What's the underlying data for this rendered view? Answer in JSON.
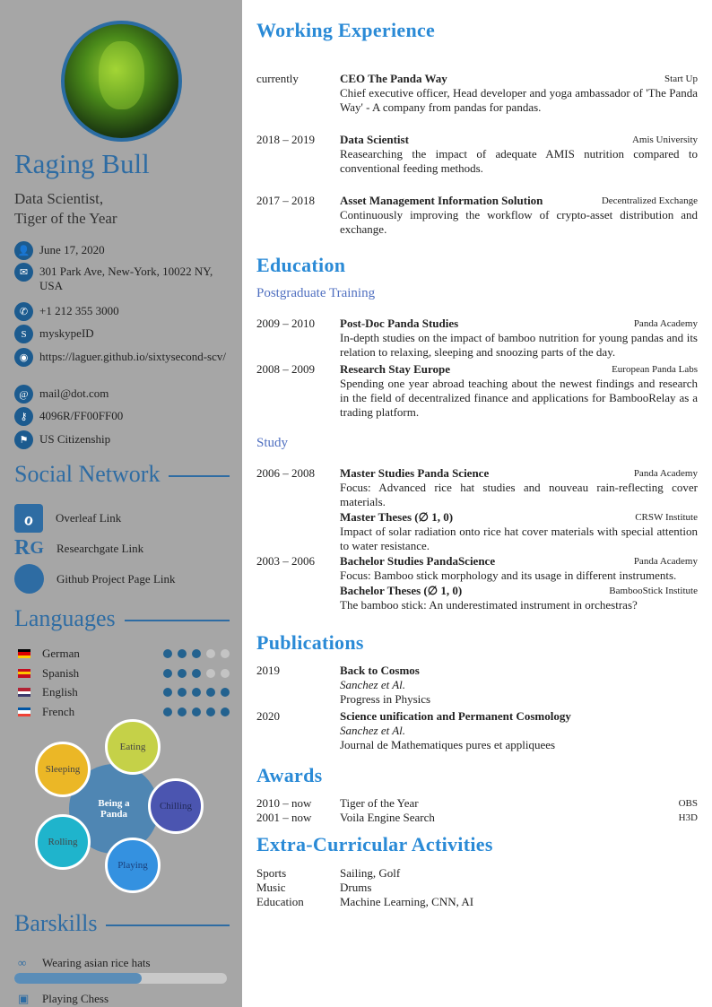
{
  "profile": {
    "name": "Raging Bull",
    "subtitle_1": "Data Scientist,",
    "subtitle_2": "Tiger of the Year"
  },
  "contacts": [
    {
      "icon": "user-icon",
      "glyph": "👤",
      "text": "June 17, 2020"
    },
    {
      "icon": "envelope-icon",
      "glyph": "✉",
      "text": "301 Park Ave, New-York, 10022 NY, USA"
    },
    {
      "icon": "phone-icon",
      "glyph": "✆",
      "text": "+1 212 355 3000"
    },
    {
      "icon": "skype-icon",
      "glyph": "S",
      "text": "myskypeID"
    },
    {
      "icon": "globe-icon",
      "glyph": "◉",
      "text": "https://laguer.github.io/sixtysecond-scv/"
    },
    {
      "icon": "at-icon",
      "glyph": "@",
      "text": "mail@dot.com"
    },
    {
      "icon": "key-icon",
      "glyph": "⚷",
      "text": "4096R/FF00FF00"
    },
    {
      "icon": "flag-icon",
      "glyph": "⚑",
      "text": "US Citizenship"
    }
  ],
  "social": {
    "heading": "Social Network",
    "items": [
      {
        "icon": "overleaf-icon",
        "glyph": "ℴ",
        "label": "Overleaf Link"
      },
      {
        "icon": "researchgate-icon",
        "glyph": "R<sup>G</sup>",
        "label": "Researchgate Link"
      },
      {
        "icon": "github-icon",
        "glyph": "●",
        "label": "Github Project Page Link"
      }
    ]
  },
  "languages": {
    "heading": "Languages",
    "items": [
      {
        "name": "German",
        "level": 3,
        "max": 5,
        "flag": [
          "#000",
          "#d00",
          "#fc0"
        ]
      },
      {
        "name": "Spanish",
        "level": 3,
        "max": 5,
        "flag": [
          "#c60b1e",
          "#ffc400",
          "#c60b1e"
        ]
      },
      {
        "name": "English",
        "level": 5,
        "max": 5,
        "flag": [
          "#b22234",
          "#fff",
          "#3c3b6e"
        ]
      },
      {
        "name": "French",
        "level": 5,
        "max": 5,
        "flag": [
          "#0055a4",
          "#fff",
          "#ef4135"
        ]
      }
    ]
  },
  "bubbles": {
    "center": "Being a Panda",
    "items": [
      {
        "label": "Eating",
        "color": "#c5d148"
      },
      {
        "label": "Chilling",
        "color": "#4b55b0"
      },
      {
        "label": "Playing",
        "color": "#3491e0"
      },
      {
        "label": "Rolling",
        "color": "#1fb4cc"
      },
      {
        "label": "Sleeping",
        "color": "#ebb726"
      }
    ]
  },
  "barskills": {
    "heading": "Barskills",
    "items": [
      {
        "icon": "link-icon",
        "glyph": "∞",
        "label": "Wearing asian rice hats",
        "level": 0.6
      },
      {
        "icon": "image-icon",
        "glyph": "▣",
        "label": "Playing Chess"
      }
    ]
  },
  "experience": {
    "heading": "Working Experience",
    "entries": [
      {
        "date": "currently",
        "title": "CEO The Panda Way",
        "org": "Start Up",
        "desc": "Chief executive officer, Head developer and yoga ambassador of 'The Panda Way' - A company from pandas for pandas."
      },
      {
        "date": "2018 – 2019",
        "title": "Data Scientist",
        "org": "Amis University",
        "desc": "Reasearching the impact of adequate AMIS nutrition compared to conventional feeding methods."
      },
      {
        "date": "2017 – 2018",
        "title": "Asset Management Information Solution",
        "org": "Decentralized Exchange",
        "desc": "Continuously improving the workflow of crypto-asset distribution and exchange."
      }
    ]
  },
  "education": {
    "heading": "Education",
    "postgrad": {
      "heading": "Postgraduate Training",
      "entries": [
        {
          "date": "2009 – 2010",
          "title": "Post-Doc Panda Studies",
          "org": "Panda Academy",
          "desc": "In-depth studies on the impact of bamboo nutrition for young pandas and its relation to relaxing, sleeping and snoozing parts of the day."
        },
        {
          "date": "2008 – 2009",
          "title": "Research Stay Europe",
          "org": "European Panda Labs",
          "desc": "Spending one year abroad teaching about the newest findings and research in the field of decentralized finance and applications for BambooRelay as a trading platform."
        }
      ]
    },
    "study": {
      "heading": "Study",
      "entries": [
        {
          "date": "2006 – 2008",
          "title": "Master Studies Panda Science",
          "org": "Panda Academy",
          "desc": "Focus: Advanced rice hat studies and nouveau rain-reflecting cover materials."
        },
        {
          "date": "",
          "title": "Master Theses (∅ 1, 0)",
          "org": "CRSW Institute",
          "desc": "Impact of solar radiation onto rice hat cover materials with special attention to water resistance."
        },
        {
          "date": "2003 – 2006",
          "title": "Bachelor Studies PandaScience",
          "org": "Panda Academy",
          "desc": "Focus: Bamboo stick morphology and its usage in different instruments."
        },
        {
          "date": "",
          "title": "Bachelor Theses (∅ 1, 0)",
          "org": "BambooStick Institute",
          "desc": "The bamboo stick: An underestimated instrument in orchestras?"
        }
      ]
    }
  },
  "publications": {
    "heading": "Publications",
    "entries": [
      {
        "date": "2019",
        "title": "Back to Cosmos",
        "authors": "Sanchez et Al.",
        "journal": "Progress in Physics"
      },
      {
        "date": "2020",
        "title": "Science unification and Permanent Cosmology",
        "authors": "Sanchez et Al.",
        "journal": "Journal de Mathematiques pures et appliquees"
      }
    ]
  },
  "awards": {
    "heading": "Awards",
    "entries": [
      {
        "date": "2010 – now",
        "title": "Tiger of the Year",
        "org": "OBS"
      },
      {
        "date": "2001 – now",
        "title": "Voila Engine Search",
        "org": "H3D"
      }
    ]
  },
  "activities": {
    "heading": "Extra-Curricular Activities",
    "entries": [
      {
        "date": "Sports",
        "text": "Sailing, Golf"
      },
      {
        "date": "Music",
        "text": "Drums"
      },
      {
        "date": "Education",
        "text": "Machine Learning, CNN, AI"
      }
    ]
  }
}
